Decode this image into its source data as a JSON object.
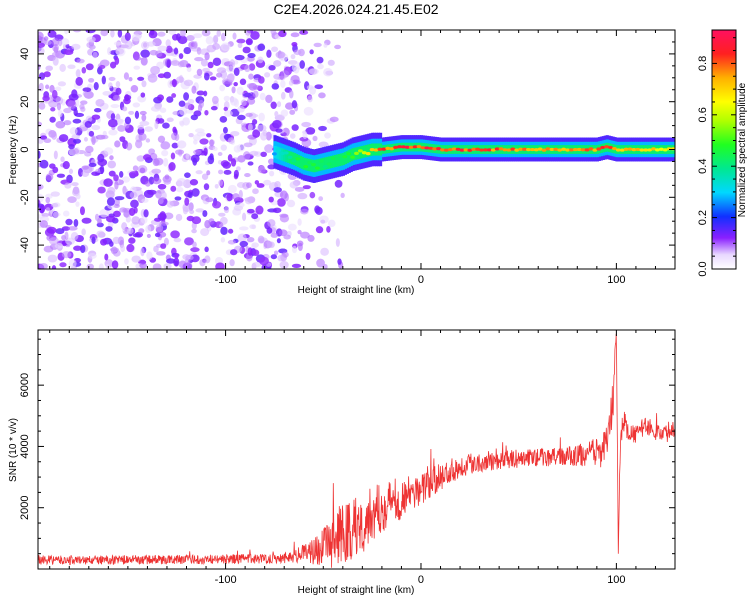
{
  "chart_data": [
    {
      "type": "heatmap",
      "title": "C2E4.2026.024.21.45.E02",
      "xlabel": "Height of straight line (km)",
      "ylabel": "Frequency (Hz)",
      "xlim": [
        -196,
        130
      ],
      "ylim": [
        -50,
        50
      ],
      "x_ticks": [
        -100,
        0,
        100
      ],
      "x_tick_labels": [
        "-100",
        "0",
        "100"
      ],
      "y_ticks": [
        -40,
        -20,
        0,
        20,
        40
      ],
      "y_tick_labels": [
        "-40",
        "-20",
        "0",
        "20",
        "40"
      ],
      "colorbar": {
        "label": "Normalized spectral amplitude",
        "range": [
          0.0,
          0.93
        ],
        "ticks": [
          0.0,
          0.2,
          0.4,
          0.6,
          0.8
        ],
        "tick_labels": [
          "0.0",
          "0.2",
          "0.4",
          "0.6",
          "0.8"
        ]
      },
      "noise_region": {
        "x": [
          -196,
          -50
        ],
        "freq": [
          -50,
          50
        ],
        "amplitude": 0.1
      },
      "signal_track": {
        "x": [
          -75,
          -65,
          -60,
          -55,
          -50,
          -45,
          -40,
          -35,
          -30,
          -25,
          -20,
          -10,
          0,
          10,
          20,
          40,
          60,
          80,
          90,
          95,
          100,
          110,
          130
        ],
        "freq": [
          -1,
          -4,
          -6,
          -7,
          -6,
          -5,
          -4,
          -2,
          -1,
          0,
          0,
          1,
          1,
          0,
          0,
          0,
          0,
          0,
          0,
          1,
          0,
          0,
          0
        ],
        "amplitude": [
          0.3,
          0.45,
          0.5,
          0.5,
          0.45,
          0.45,
          0.5,
          0.55,
          0.6,
          0.75,
          0.85,
          0.9,
          0.9,
          0.9,
          0.88,
          0.85,
          0.8,
          0.8,
          0.85,
          0.9,
          0.8,
          0.75,
          0.7
        ]
      }
    },
    {
      "type": "line",
      "xlabel": "Height of straight line (km)",
      "ylabel": "SNR (10 * v/v)",
      "xlim": [
        -196,
        130
      ],
      "ylim": [
        0,
        7800
      ],
      "x_ticks": [
        -100,
        0,
        100
      ],
      "x_tick_labels": [
        "-100",
        "0",
        "100"
      ],
      "y_ticks": [
        2000,
        4000,
        6000
      ],
      "y_tick_labels": [
        "2000",
        "4000",
        "6000"
      ],
      "series": [
        {
          "name": "SNR",
          "color": "#ee3333",
          "x": [
            -196,
            -180,
            -160,
            -140,
            -120,
            -100,
            -80,
            -70,
            -60,
            -50,
            -45,
            -40,
            -35,
            -30,
            -25,
            -20,
            -15,
            -10,
            -5,
            0,
            5,
            10,
            15,
            20,
            25,
            30,
            40,
            50,
            60,
            70,
            80,
            90,
            95,
            98,
            100,
            101,
            102,
            104,
            106,
            110,
            115,
            120,
            125,
            130
          ],
          "values": [
            300,
            280,
            300,
            300,
            310,
            320,
            340,
            370,
            500,
            700,
            900,
            1100,
            1300,
            1500,
            1800,
            2000,
            2200,
            2300,
            2450,
            2600,
            2800,
            3000,
            3200,
            3350,
            3450,
            3500,
            3550,
            3600,
            3650,
            3650,
            3700,
            3800,
            3950,
            5200,
            7800,
            500,
            4200,
            4900,
            4400,
            4400,
            4700,
            4500,
            4400,
            4600
          ],
          "noise_amplitude": [
            150,
            150,
            150,
            150,
            150,
            160,
            160,
            180,
            300,
            600,
            900,
            1100,
            1100,
            1000,
            900,
            800,
            800,
            700,
            600,
            500,
            500,
            450,
            400,
            400,
            350,
            350,
            300,
            300,
            300,
            300,
            350,
            500,
            600,
            900,
            0,
            0,
            500,
            350,
            300,
            300,
            300,
            300,
            300,
            300
          ]
        }
      ]
    }
  ]
}
